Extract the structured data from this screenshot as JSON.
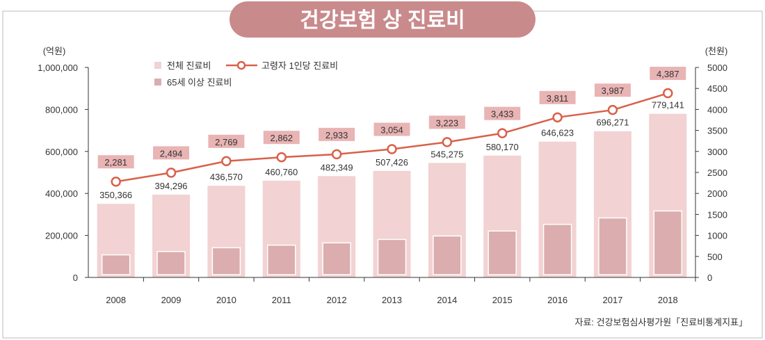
{
  "chart_data": {
    "type": "bar",
    "title": "건강보험 상 진료비",
    "categories": [
      "2008",
      "2009",
      "2010",
      "2011",
      "2012",
      "2013",
      "2014",
      "2015",
      "2016",
      "2017",
      "2018"
    ],
    "left_axis": {
      "unit": "(억원)",
      "ylim": [
        0,
        1000000
      ],
      "ticks": [
        0,
        200000,
        400000,
        600000,
        800000,
        1000000
      ],
      "tick_labels": [
        "0",
        "200,000",
        "400,000",
        "600,000",
        "800,000",
        "1,000,000"
      ]
    },
    "right_axis": {
      "unit": "(천원)",
      "ylim": [
        0,
        5000
      ],
      "ticks": [
        0,
        500,
        1000,
        1500,
        2000,
        2500,
        3000,
        3500,
        4000,
        4500,
        5000
      ],
      "tick_labels": [
        "0",
        "500",
        "1000",
        "1500",
        "2000",
        "2500",
        "3000",
        "3500",
        "4000",
        "4500",
        "5000"
      ]
    },
    "series": [
      {
        "name": "전체 진료비",
        "type": "bar",
        "axis": "left",
        "color": "#f2d2d2",
        "values": [
          350366,
          394296,
          436570,
          460760,
          482349,
          507426,
          545275,
          580170,
          646623,
          696271,
          779141
        ],
        "labels": [
          "350,366",
          "394,296",
          "436,570",
          "460,760",
          "482,349",
          "507,426",
          "545,275",
          "580,170",
          "646,623",
          "696,271",
          "779,141"
        ]
      },
      {
        "name": "65세 이상 진료비",
        "type": "bar",
        "axis": "left",
        "color": "#dbadae",
        "values": [
          107371,
          123283,
          141350,
          153768,
          164494,
          180852,
          197417,
          221128,
          252692,
          283247,
          316527
        ]
      },
      {
        "name": "고령자 1인당 진료비",
        "type": "line",
        "axis": "right",
        "color": "#d9604a",
        "values": [
          2281,
          2494,
          2769,
          2862,
          2933,
          3054,
          3223,
          3433,
          3811,
          3987,
          4387
        ],
        "labels": [
          "2,281",
          "2,494",
          "2,769",
          "2,862",
          "2,933",
          "3,054",
          "3,223",
          "3,433",
          "3,811",
          "3,987",
          "4,387"
        ]
      }
    ],
    "legend_placement": "top-left",
    "source": "자료: 건강보험심사평가원「진료비통계지표」",
    "grid": false
  }
}
